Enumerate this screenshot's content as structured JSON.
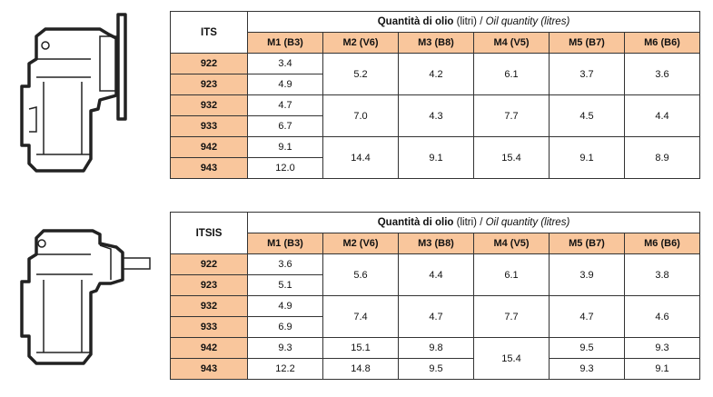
{
  "title": {
    "main": "Quantità di olio",
    "unit_it": "(litri)",
    "sep": "/",
    "main_en": "Oil quantity",
    "unit_en": "(litres)"
  },
  "mounts": [
    "M1 (B3)",
    "M2 (V6)",
    "M3 (B8)",
    "M4 (V5)",
    "M5 (B7)",
    "M6 (B6)"
  ],
  "table1": {
    "model": "ITS",
    "sizes": [
      "922",
      "923",
      "932",
      "933",
      "942",
      "943"
    ],
    "m1": [
      "3.4",
      "4.9",
      "4.7",
      "6.7",
      "9.1",
      "12.0"
    ],
    "groups": [
      [
        "5.2",
        "4.2",
        "6.1",
        "3.7",
        "3.6"
      ],
      [
        "7.0",
        "4.3",
        "7.7",
        "4.5",
        "4.4"
      ],
      [
        "14.4",
        "9.1",
        "15.4",
        "9.1",
        "8.9"
      ]
    ]
  },
  "table2": {
    "model": "ITSIS",
    "sizes": [
      "922",
      "923",
      "932",
      "933",
      "942",
      "943"
    ],
    "m1": [
      "3.6",
      "5.1",
      "4.9",
      "6.9",
      "9.3",
      "12.2"
    ],
    "groups": [
      [
        "5.6",
        "4.4",
        "6.1",
        "3.9",
        "3.8"
      ],
      [
        "7.4",
        "4.7",
        "7.7",
        "4.7",
        "4.6"
      ]
    ],
    "r942": {
      "m2": "15.1",
      "m3": "9.8",
      "m5": "9.5",
      "m6": "9.3"
    },
    "r943": {
      "m2": "14.8",
      "m3": "9.5",
      "m5": "9.3",
      "m6": "9.1"
    },
    "m4_942_943": "15.4"
  }
}
